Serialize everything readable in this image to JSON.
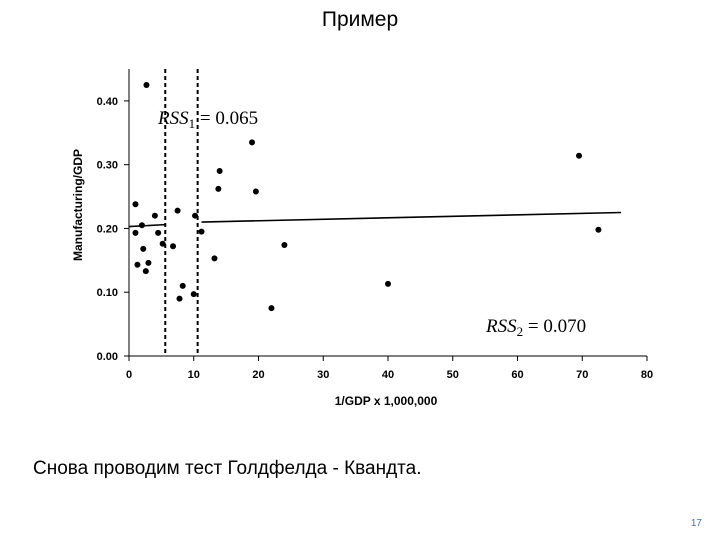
{
  "slide": {
    "title": "Пример",
    "caption": "Снова проводим тест Голдфелда - Квандта.",
    "page_number": "17"
  },
  "chart_data": {
    "type": "scatter",
    "title": "",
    "xlabel": "1/GDP x 1,000,000",
    "ylabel": "Manufacturing/GDP",
    "xlim": [
      0,
      80
    ],
    "ylim": [
      0,
      0.45
    ],
    "x_ticks": [
      "0",
      "10",
      "20",
      "30",
      "40",
      "50",
      "60",
      "70",
      "80"
    ],
    "y_ticks": [
      "0.00",
      "0.10",
      "0.20",
      "0.30",
      "0.40"
    ],
    "grid": false,
    "points": [
      {
        "x": 2.7,
        "y": 0.425
      },
      {
        "x": 1.0,
        "y": 0.238
      },
      {
        "x": 2.0,
        "y": 0.205
      },
      {
        "x": 1.0,
        "y": 0.193
      },
      {
        "x": 4.0,
        "y": 0.22
      },
      {
        "x": 4.5,
        "y": 0.193
      },
      {
        "x": 5.2,
        "y": 0.176
      },
      {
        "x": 2.2,
        "y": 0.168
      },
      {
        "x": 1.3,
        "y": 0.143
      },
      {
        "x": 3.0,
        "y": 0.146
      },
      {
        "x": 2.6,
        "y": 0.133
      },
      {
        "x": 7.5,
        "y": 0.228
      },
      {
        "x": 6.8,
        "y": 0.172
      },
      {
        "x": 8.3,
        "y": 0.11
      },
      {
        "x": 7.8,
        "y": 0.09
      },
      {
        "x": 10.0,
        "y": 0.097
      },
      {
        "x": 10.2,
        "y": 0.22
      },
      {
        "x": 11.2,
        "y": 0.195
      },
      {
        "x": 13.2,
        "y": 0.153
      },
      {
        "x": 14.0,
        "y": 0.29
      },
      {
        "x": 13.8,
        "y": 0.262
      },
      {
        "x": 19.0,
        "y": 0.335
      },
      {
        "x": 19.6,
        "y": 0.258
      },
      {
        "x": 24.0,
        "y": 0.174
      },
      {
        "x": 22.0,
        "y": 0.075
      },
      {
        "x": 40.0,
        "y": 0.113
      },
      {
        "x": 69.5,
        "y": 0.314
      },
      {
        "x": 72.5,
        "y": 0.198
      }
    ],
    "split_lines_x": [
      5.6,
      10.6
    ],
    "regression_lines": [
      {
        "x": [
          0.0,
          5.6
        ],
        "y": [
          0.203,
          0.206
        ]
      },
      {
        "x": [
          11.2,
          76.0
        ],
        "y": [
          0.21,
          0.225
        ]
      }
    ],
    "annotations": [
      {
        "label": "RSS",
        "sub": "1",
        "value": " = 0.065"
      },
      {
        "label": "RSS",
        "sub": "2",
        "value": " = 0.070"
      }
    ]
  }
}
